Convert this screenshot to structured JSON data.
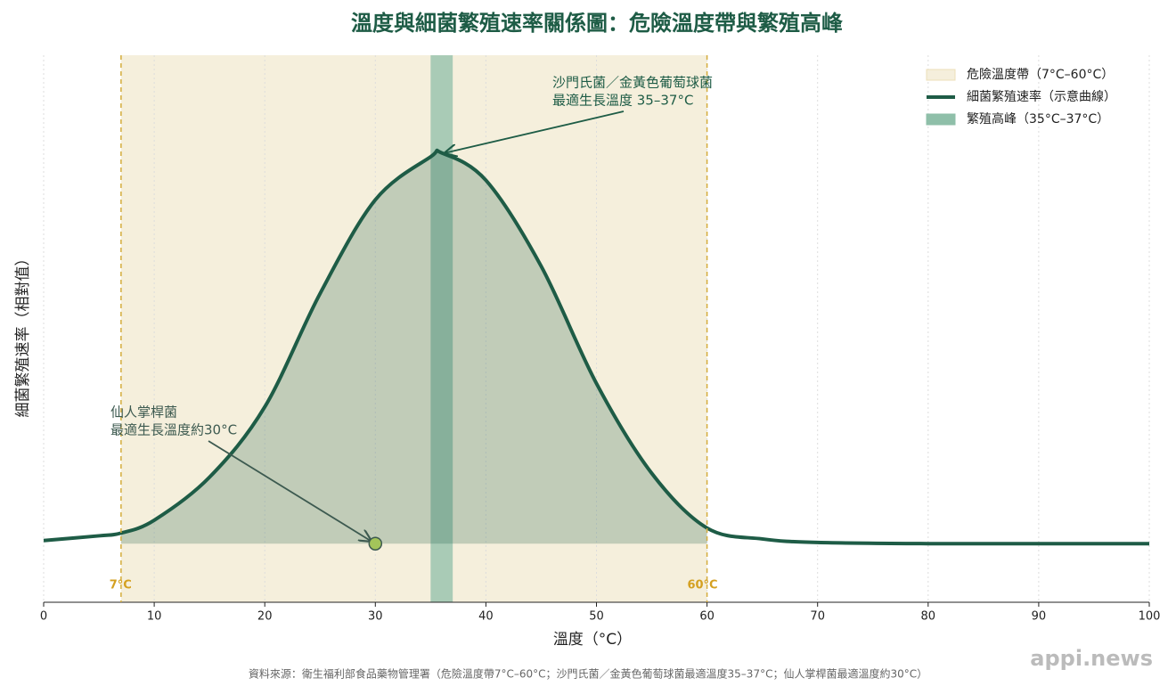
{
  "chart_data": {
    "type": "line",
    "title": "溫度與細菌繁殖速率關係圖：危險溫度帶與繁殖高峰",
    "x_label": "溫度（°C）",
    "y_label": "細菌繁殖速率（相對值）",
    "x": [
      0,
      5,
      7,
      10,
      15,
      20,
      25,
      30,
      35,
      36,
      40,
      45,
      50,
      55,
      60,
      65,
      70,
      80,
      90,
      100
    ],
    "series": [
      {
        "name": "細菌繁殖速率（示意曲線）",
        "color": "#1e5c46",
        "values": [
          0.008,
          0.02,
          0.027,
          0.06,
          0.17,
          0.35,
          0.64,
          0.88,
          0.99,
          1.0,
          0.93,
          0.71,
          0.41,
          0.18,
          0.04,
          0.012,
          0.003,
          0,
          0,
          0
        ]
      }
    ],
    "bands": [
      {
        "name": "危險溫度帶（7°C–60°C）",
        "from": 7,
        "to": 60,
        "color": "#f5efdc"
      },
      {
        "name": "繁殖高峰（35°C–37°C）",
        "from": 35,
        "to": 37,
        "color": "#8fbfa9"
      }
    ],
    "markers": [
      {
        "x": 7,
        "label": "7°C"
      },
      {
        "x": 60,
        "label": "60°C"
      }
    ],
    "points": [
      {
        "x": 30,
        "y": 0,
        "color": "#a3c45a"
      }
    ],
    "annotations": [
      {
        "text": [
          "沙門氏菌／金黃色葡萄球菌",
          "最適生長溫度 35–37°C"
        ],
        "xy": [
          36,
          1.0
        ]
      },
      {
        "text": [
          "仙人掌桿菌",
          "最適生長溫度約30°C"
        ],
        "xy": [
          30,
          0
        ]
      }
    ],
    "xlim": [
      0,
      100
    ],
    "ylim": [
      -0.15,
      1.25
    ],
    "xticks": [
      0,
      10,
      20,
      30,
      40,
      50,
      60,
      70,
      80,
      90,
      100
    ],
    "grid": true,
    "legend": "upper right",
    "source": "資料來源：衛生福利部食品藥物管理署（危險溫度帶7°C–60°C；沙門氏菌／金黃色葡萄球菌最適溫度35–37°C；仙人掌桿菌最適溫度約30°C）",
    "watermark": "appi.news"
  }
}
